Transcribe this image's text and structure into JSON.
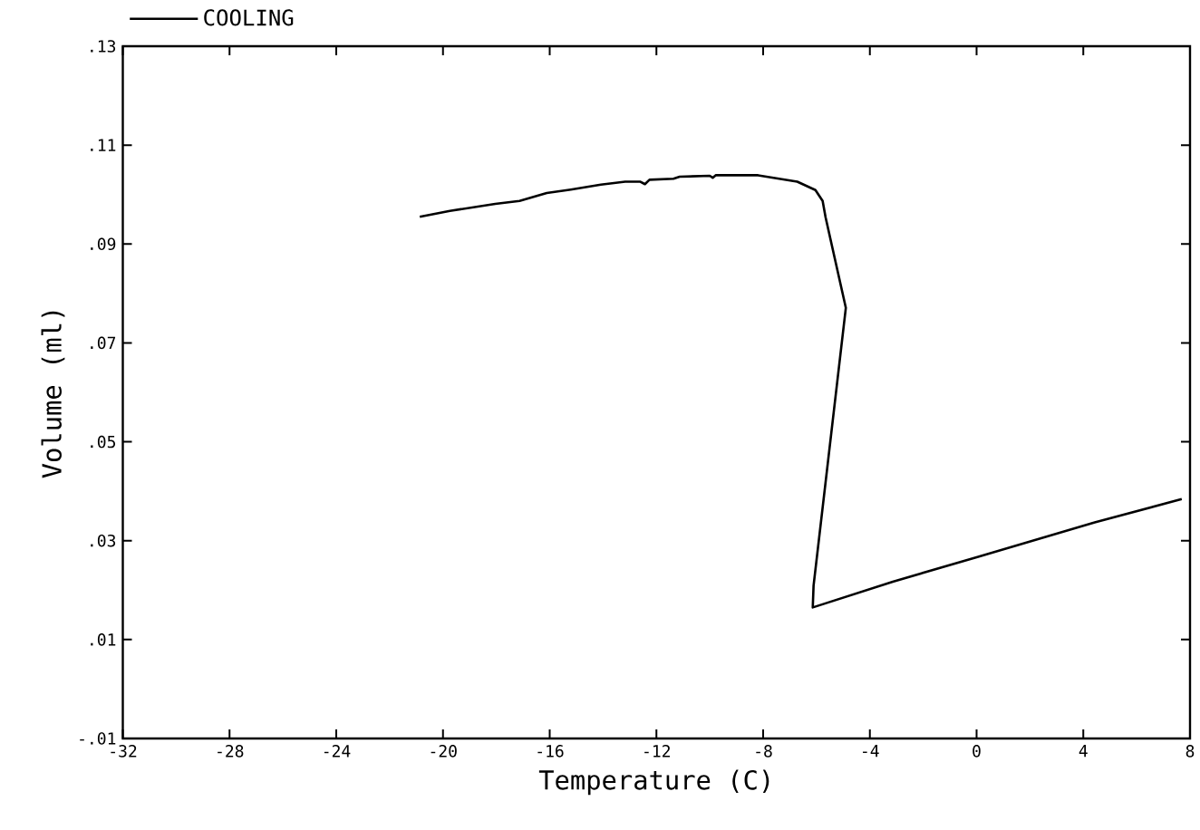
{
  "chart_data": {
    "type": "line",
    "xlabel": "Temperature (C)",
    "ylabel": "Volume (ml)",
    "series": [
      {
        "name": "COOLING",
        "color": "#000000",
        "x": [
          -20.87,
          -19.74,
          -18.04,
          -17.13,
          -16.11,
          -15.21,
          -14.08,
          -13.17,
          -12.6,
          -12.43,
          -12.26,
          -11.36,
          -11.13,
          -10.0,
          -9.89,
          -9.78,
          -8.19,
          -6.72,
          -6.04,
          -5.77,
          -5.66,
          -4.9,
          -6.11,
          -6.14,
          -3.14,
          0.03,
          4.43,
          7.69
        ],
        "values": [
          0.0955,
          0.0967,
          0.0981,
          0.0987,
          0.1003,
          0.101,
          0.102,
          0.1026,
          0.1026,
          0.1021,
          0.103,
          0.1032,
          0.1036,
          0.1038,
          0.1034,
          0.1039,
          0.1039,
          0.1026,
          0.1009,
          0.0987,
          0.0954,
          0.0771,
          0.0209,
          0.0165,
          0.0217,
          0.0267,
          0.0337,
          0.0384
        ]
      }
    ],
    "xlim": [
      -32,
      8
    ],
    "ylim": [
      -0.01,
      0.13
    ],
    "xticks": [
      -32,
      -28,
      -24,
      -20,
      -16,
      -12,
      -8,
      -4,
      0,
      4,
      8
    ],
    "yticks": [
      {
        "value": -0.01,
        "label": "-.01"
      },
      {
        "value": 0.01,
        "label": ".01"
      },
      {
        "value": 0.03,
        "label": ".03"
      },
      {
        "value": 0.05,
        "label": ".05"
      },
      {
        "value": 0.07,
        "label": ".07"
      },
      {
        "value": 0.09,
        "label": ".09"
      },
      {
        "value": 0.11,
        "label": ".11"
      },
      {
        "value": 0.13,
        "label": ".13"
      }
    ],
    "legend": "top left",
    "grid": false,
    "marker": "none",
    "line_style": "solid"
  }
}
